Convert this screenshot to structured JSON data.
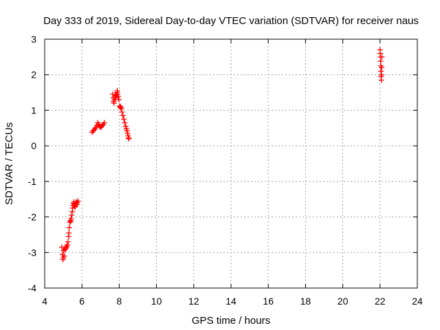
{
  "colors": {
    "series": "#ff0000",
    "grid": "#a0a0a0",
    "axes": "#000000"
  },
  "chart_data": {
    "type": "scatter",
    "title": "Day 333 of 2019, Sidereal Day-to-day VTEC variation (SDTVAR) for receiver naus",
    "xlabel": "GPS time / hours",
    "ylabel": "SDTVAR / TECUs",
    "xlim": [
      4,
      24
    ],
    "ylim": [
      -4,
      3
    ],
    "xticks": [
      4,
      6,
      8,
      10,
      12,
      14,
      16,
      18,
      20,
      22,
      24
    ],
    "yticks": [
      -4,
      -3,
      -2,
      -1,
      0,
      1,
      2,
      3
    ],
    "grid": true,
    "marker": "plus",
    "series": [
      {
        "name": "SDTVAR",
        "points": [
          [
            4.92,
            -2.85
          ],
          [
            4.95,
            -3.05
          ],
          [
            4.98,
            -3.2
          ],
          [
            5.0,
            -3.15
          ],
          [
            5.02,
            -2.95
          ],
          [
            5.05,
            -3.1
          ],
          [
            5.08,
            -2.9
          ],
          [
            5.1,
            -2.92
          ],
          [
            5.13,
            -2.88
          ],
          [
            5.16,
            -2.85
          ],
          [
            5.19,
            -2.82
          ],
          [
            5.22,
            -2.78
          ],
          [
            5.25,
            -2.7
          ],
          [
            5.28,
            -2.55
          ],
          [
            5.3,
            -2.45
          ],
          [
            5.32,
            -2.3
          ],
          [
            5.35,
            -2.15
          ],
          [
            5.38,
            -2.1
          ],
          [
            5.4,
            -2.12
          ],
          [
            5.42,
            -2.05
          ],
          [
            5.45,
            -1.95
          ],
          [
            5.48,
            -1.85
          ],
          [
            5.5,
            -1.75
          ],
          [
            5.52,
            -1.68
          ],
          [
            5.55,
            -1.62
          ],
          [
            5.57,
            -1.58
          ],
          [
            5.6,
            -1.65
          ],
          [
            5.62,
            -1.72
          ],
          [
            5.65,
            -1.7
          ],
          [
            5.68,
            -1.62
          ],
          [
            5.7,
            -1.58
          ],
          [
            5.73,
            -1.65
          ],
          [
            5.75,
            -1.6
          ],
          [
            5.78,
            -1.55
          ],
          [
            6.55,
            0.38
          ],
          [
            6.6,
            0.42
          ],
          [
            6.65,
            0.45
          ],
          [
            6.7,
            0.48
          ],
          [
            6.75,
            0.52
          ],
          [
            6.8,
            0.58
          ],
          [
            6.85,
            0.65
          ],
          [
            6.9,
            0.6
          ],
          [
            6.95,
            0.55
          ],
          [
            7.0,
            0.52
          ],
          [
            7.05,
            0.55
          ],
          [
            7.1,
            0.58
          ],
          [
            7.15,
            0.6
          ],
          [
            7.2,
            0.65
          ],
          [
            7.65,
            1.45
          ],
          [
            7.68,
            1.35
          ],
          [
            7.7,
            1.25
          ],
          [
            7.72,
            1.2
          ],
          [
            7.75,
            1.3
          ],
          [
            7.78,
            1.45
          ],
          [
            7.8,
            1.4
          ],
          [
            7.82,
            1.35
          ],
          [
            7.85,
            1.42
          ],
          [
            7.88,
            1.5
          ],
          [
            7.9,
            1.55
          ],
          [
            7.92,
            1.45
          ],
          [
            7.95,
            1.38
          ],
          [
            7.98,
            1.3
          ],
          [
            8.02,
            1.12
          ],
          [
            8.05,
            1.08
          ],
          [
            8.08,
            1.1
          ],
          [
            8.12,
            1.05
          ],
          [
            8.15,
            0.95
          ],
          [
            8.2,
            0.85
          ],
          [
            8.25,
            0.75
          ],
          [
            8.3,
            0.65
          ],
          [
            8.35,
            0.55
          ],
          [
            8.38,
            0.48
          ],
          [
            8.42,
            0.42
          ],
          [
            8.45,
            0.35
          ],
          [
            8.48,
            0.28
          ],
          [
            8.5,
            0.22
          ],
          [
            8.52,
            0.2
          ],
          [
            22.0,
            2.7
          ],
          [
            22.01,
            2.6
          ],
          [
            22.02,
            2.5
          ],
          [
            22.03,
            2.38
          ],
          [
            22.04,
            2.25
          ],
          [
            22.05,
            2.1
          ],
          [
            22.06,
            1.95
          ],
          [
            22.07,
            1.85
          ],
          [
            22.08,
            2.0
          ],
          [
            22.09,
            2.2
          ],
          [
            22.1,
            2.5
          ]
        ]
      }
    ]
  }
}
